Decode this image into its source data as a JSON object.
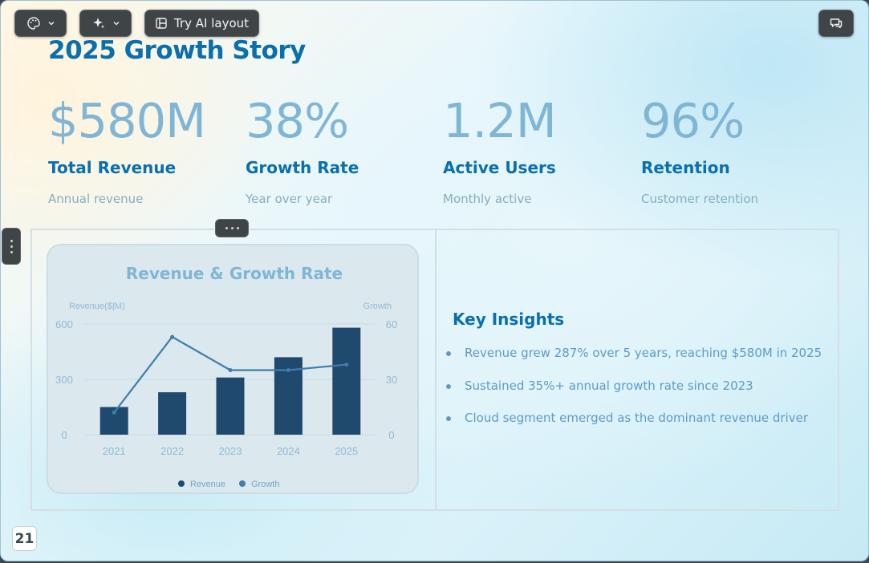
{
  "toolbar": {
    "theme_icon": "palette-icon",
    "magic_icon": "sparkle-icon",
    "ai_layout_label": "Try AI layout",
    "comment_icon": "comment-icon"
  },
  "slide": {
    "title": "2025 Growth Story",
    "page_number": "21",
    "stats": [
      {
        "value": "$580M",
        "label": "Total Revenue",
        "sub": "Annual revenue"
      },
      {
        "value": "38%",
        "label": "Growth Rate",
        "sub": "Year over year"
      },
      {
        "value": "1.2M",
        "label": "Active Users",
        "sub": "Monthly active"
      },
      {
        "value": "96%",
        "label": "Retention",
        "sub": "Customer retention"
      }
    ],
    "insights": {
      "title": "Key Insights",
      "items": [
        "Revenue grew 287% over 5 years, reaching $580M in 2025",
        "Sustained 35%+ annual growth rate since 2023",
        "Cloud segment emerged as the dominant revenue driver"
      ]
    }
  },
  "colors": {
    "accent": "#0a6fad",
    "bar": "#1f4a6e",
    "line": "#3d7eab"
  },
  "chart_data": {
    "type": "bar",
    "title": "Revenue & Growth Rate",
    "categories": [
      "2021",
      "2022",
      "2023",
      "2024",
      "2025"
    ],
    "ylabel": "Revenue($|M)",
    "y2label": "Growth",
    "ylim": [
      0,
      600
    ],
    "y2lim": [
      0,
      60
    ],
    "yticks": [
      "0",
      "300",
      "600"
    ],
    "y2ticks": [
      "0",
      "30",
      "60"
    ],
    "series": [
      {
        "name": "Revenue",
        "type": "bar",
        "axis": "left",
        "values": [
          150,
          230,
          310,
          420,
          580
        ]
      },
      {
        "name": "Growth",
        "type": "line",
        "axis": "right",
        "values": [
          12,
          53,
          35,
          35,
          38
        ]
      }
    ],
    "legend": "bottom",
    "grid": true
  }
}
